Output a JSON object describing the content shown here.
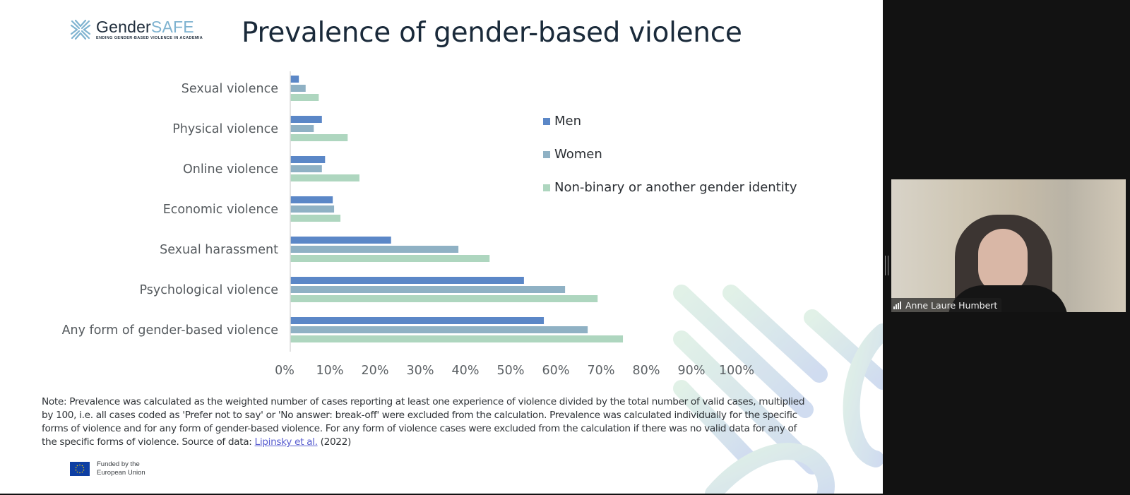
{
  "slide": {
    "logo": {
      "name_dark": "Gender",
      "name_light": "SAFE",
      "tagline": "ENDING GENDER-BASED VIOLENCE IN ACADEMIA"
    },
    "title": "Prevalence of gender-based violence",
    "note_prefix": "Note: Prevalence was calculated as the weighted number of cases reporting at least one experience of violence divided by the total number of valid cases, multiplied by 100, i.e. all cases coded as 'Prefer not to say' or 'No answer: break-off' were excluded from the calculation. Prevalence was calculated individually for the specific forms of violence and for any form of gender-based violence. For any form of violence cases were excluded from the calculation if there was no valid data for any of the specific forms of violence. Source of data: ",
    "note_link": "Lipinsky et al.",
    "note_suffix": " (2022)",
    "eu_line1": "Funded by the",
    "eu_line2": "European Union"
  },
  "chart_data": {
    "type": "bar",
    "orientation": "horizontal",
    "title": "Prevalence of gender-based violence",
    "categories": [
      "Sexual violence",
      "Physical violence",
      "Online violence",
      "Economic violence",
      "Sexual harassment",
      "Psychological violence",
      "Any form of gender-based violence"
    ],
    "series": [
      {
        "name": "Men",
        "color": "#5b87c7",
        "values": [
          1.9,
          7.0,
          7.7,
          9.4,
          22.3,
          51.7,
          56.1
        ]
      },
      {
        "name": "Women",
        "color": "#8fb1c4",
        "values": [
          3.4,
          5.2,
          7.0,
          9.7,
          37.2,
          60.8,
          65.8
        ]
      },
      {
        "name": "Non-binary or another gender identity",
        "color": "#aed6bf",
        "values": [
          6.3,
          12.7,
          15.3,
          11.1,
          44.1,
          68.0,
          73.6
        ]
      }
    ],
    "xlim": [
      0,
      100
    ],
    "xticks": [
      "0%",
      "10%",
      "20%",
      "30%",
      "40%",
      "50%",
      "60%",
      "70%",
      "80%",
      "90%",
      "100%"
    ],
    "xlabel": "",
    "ylabel": "",
    "grid": false,
    "legend_position": "right"
  },
  "video": {
    "participant_name": "Anne Laure Humbert"
  }
}
